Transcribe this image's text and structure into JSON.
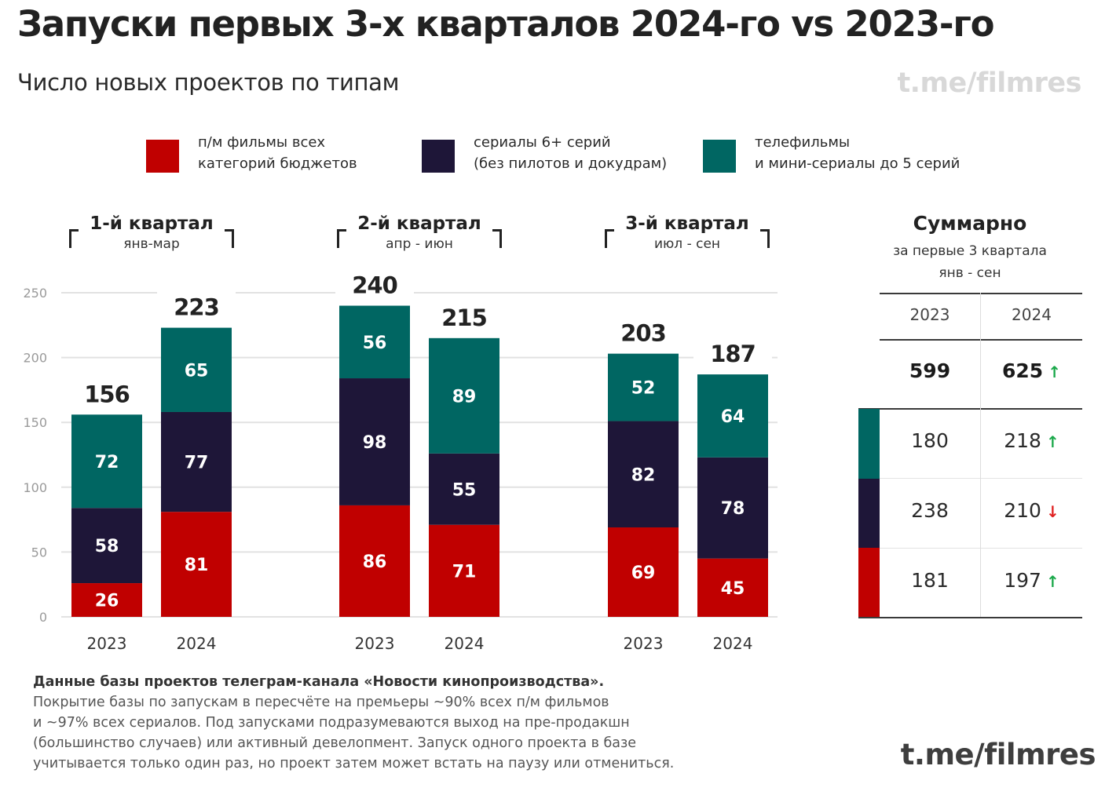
{
  "header": {
    "title": "Запуски первых 3-х кварталов 2024-го vs 2023-го",
    "subtitle": "Число новых проектов по типам",
    "watermark": "t.me/filmres"
  },
  "legend": [
    {
      "line1": "п/м фильмы всех",
      "line2": "категорий бюджетов",
      "color": "#c00000"
    },
    {
      "line1": "сериалы 6+ серий",
      "line2": "(без пилотов и докудрам)",
      "color": "#1e1638"
    },
    {
      "line1": "телефильмы",
      "line2": "и мини-сериалы до 5 серий",
      "color": "#006662"
    }
  ],
  "quarters": [
    {
      "title": "1-й квартал",
      "months": "янв-мар"
    },
    {
      "title": "2-й квартал",
      "months": "апр - июн"
    },
    {
      "title": "3-й квартал",
      "months": "июл - сен"
    }
  ],
  "chart_data": {
    "type": "bar",
    "stacked": true,
    "title": "Запуски первых 3-х кварталов 2024-го vs 2023-го",
    "subtitle": "Число новых проектов по типам",
    "xlabel": "",
    "ylabel": "",
    "ylim": [
      0,
      250
    ],
    "yticks": [
      0,
      50,
      100,
      150,
      200,
      250
    ],
    "grid": true,
    "legend_position": "top",
    "groups": [
      "1-й квартал",
      "2-й квартал",
      "3-й квартал"
    ],
    "categories": [
      "2023",
      "2024",
      "2023",
      "2024",
      "2023",
      "2024"
    ],
    "series": [
      {
        "name": "п/м фильмы всех категорий бюджетов",
        "color": "#c00000",
        "values": [
          26,
          81,
          86,
          71,
          69,
          45
        ]
      },
      {
        "name": "сериалы 6+ серий (без пилотов и докудрам)",
        "color": "#1e1638",
        "values": [
          58,
          77,
          98,
          55,
          82,
          78
        ]
      },
      {
        "name": "телефильмы и мини-сериалы до 5 серий",
        "color": "#006662",
        "values": [
          72,
          65,
          56,
          89,
          52,
          64
        ]
      }
    ],
    "totals": [
      156,
      223,
      240,
      215,
      203,
      187
    ]
  },
  "summary": {
    "title": "Суммарно",
    "subtitle_line1": "за первые 3 квартала",
    "subtitle_line2": "янв - сен",
    "columns": [
      "2023",
      "2024"
    ],
    "total": {
      "v2023": "599",
      "v2024": "625",
      "trend": "up"
    },
    "rows": [
      {
        "category": "телефильмы и мини-сериалы",
        "color": "#006662",
        "v2023": "180",
        "v2024": "218",
        "trend": "up"
      },
      {
        "category": "сериалы 6+ серий",
        "color": "#1e1638",
        "v2023": "238",
        "v2024": "210",
        "trend": "down"
      },
      {
        "category": "п/м фильмы",
        "color": "#c00000",
        "v2023": "181",
        "v2024": "197",
        "trend": "up"
      }
    ],
    "up_color": "#1aa84a",
    "down_color": "#e02020"
  },
  "footnote": {
    "bold_line": "Данные базы проектов телеграм-канала «Новости кинопроизводства».",
    "lines": [
      "Покрытие базы по запускам в пересчёте на премьеры ~90% всех п/м фильмов",
      "и ~97% всех сериалов. Под запусками подразумеваются выход на пре-продакшн",
      "(большинство случаев) или активный девелопмент. Запуск одного проекта в базе",
      "учитывается только один раз, но проект затем может встать на паузу или отмениться."
    ]
  },
  "footer": {
    "watermark": "t.me/filmres"
  }
}
